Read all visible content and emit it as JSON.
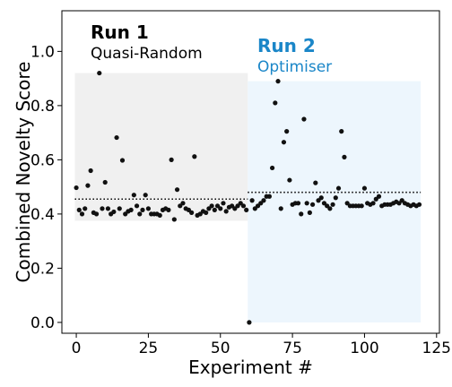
{
  "chart_data": {
    "type": "scatter",
    "xlabel": "Experiment #",
    "ylabel": "Combined Novelty Score",
    "xlim": [
      -5,
      126
    ],
    "ylim": [
      -0.04,
      1.15
    ],
    "xticks": [
      0,
      25,
      50,
      75,
      100,
      125
    ],
    "yticks": [
      0.0,
      0.2,
      0.4,
      0.6,
      0.8,
      1.0
    ],
    "grid": false,
    "colors": {
      "run1_region": "#f0f0f0",
      "run2_region": "#edf6fd",
      "run2_text": "#1a86c8",
      "points": "#111111",
      "mean_line": "#000000"
    },
    "annotations": [
      {
        "id": "run1",
        "title": "Run 1",
        "subtitle": "Quasi-Random",
        "color": "#000000"
      },
      {
        "id": "run2",
        "title": "Run 2",
        "subtitle": "Optimiser",
        "color": "#1a86c8"
      }
    ],
    "regions": [
      {
        "id": "run1",
        "x_start": -0.5,
        "x_end": 59.5,
        "y_start": 0.375,
        "y_end": 0.92,
        "color": "#f0f0f0"
      },
      {
        "id": "run2",
        "x_start": 59.5,
        "x_end": 119.5,
        "y_start": 0.0,
        "y_end": 0.89,
        "color": "#edf6fd"
      }
    ],
    "mean_lines": [
      {
        "id": "run1",
        "x_start": -0.5,
        "x_end": 59.5,
        "y": 0.455
      },
      {
        "id": "run2",
        "x_start": 59.5,
        "x_end": 119.5,
        "y": 0.48
      }
    ],
    "series": [
      {
        "x": [
          0,
          1,
          2,
          3,
          4,
          5,
          6,
          7,
          8,
          9,
          10,
          11,
          12,
          13,
          14,
          15,
          16,
          17,
          18,
          19,
          20,
          21,
          22,
          23,
          24,
          25,
          26,
          27,
          28,
          29,
          30,
          31,
          32,
          33,
          34,
          35,
          36,
          37,
          38,
          39,
          40,
          41,
          42,
          43,
          44,
          45,
          46,
          47,
          48,
          49,
          50,
          51,
          52,
          53,
          54,
          55,
          56,
          57,
          58,
          59
        ],
        "y": [
          0.497,
          0.415,
          0.4,
          0.42,
          0.505,
          0.56,
          0.405,
          0.4,
          0.92,
          0.42,
          0.517,
          0.42,
          0.4,
          0.408,
          0.682,
          0.42,
          0.598,
          0.4,
          0.41,
          0.415,
          0.47,
          0.43,
          0.4,
          0.415,
          0.47,
          0.42,
          0.4,
          0.4,
          0.4,
          0.395,
          0.415,
          0.42,
          0.415,
          0.6,
          0.38,
          0.49,
          0.43,
          0.44,
          0.42,
          0.415,
          0.405,
          0.612,
          0.395,
          0.4,
          0.41,
          0.405,
          0.42,
          0.43,
          0.415,
          0.43,
          0.42,
          0.44,
          0.41,
          0.425,
          0.43,
          0.42,
          0.43,
          0.44,
          0.43,
          0.415
        ]
      },
      {
        "x": [
          60,
          61,
          62,
          63,
          64,
          65,
          66,
          67,
          68,
          69,
          70,
          71,
          72,
          73,
          74,
          75,
          76,
          77,
          78,
          79,
          80,
          81,
          82,
          83,
          84,
          85,
          86,
          87,
          88,
          89,
          90,
          91,
          92,
          93,
          94,
          95,
          96,
          97,
          98,
          99,
          100,
          101,
          102,
          103,
          104,
          105,
          106,
          107,
          108,
          109,
          110,
          111,
          112,
          113,
          114,
          115,
          116,
          117,
          118,
          119
        ],
        "y": [
          0.0,
          0.45,
          0.42,
          0.43,
          0.44,
          0.45,
          0.465,
          0.465,
          0.57,
          0.81,
          0.89,
          0.42,
          0.665,
          0.705,
          0.525,
          0.435,
          0.44,
          0.44,
          0.4,
          0.75,
          0.44,
          0.405,
          0.435,
          0.515,
          0.45,
          0.46,
          0.44,
          0.43,
          0.42,
          0.435,
          0.46,
          0.495,
          0.705,
          0.61,
          0.44,
          0.43,
          0.43,
          0.43,
          0.43,
          0.43,
          0.495,
          0.44,
          0.435,
          0.44,
          0.455,
          0.465,
          0.43,
          0.435,
          0.435,
          0.435,
          0.44,
          0.445,
          0.44,
          0.45,
          0.44,
          0.435,
          0.43,
          0.435,
          0.43,
          0.435
        ]
      }
    ]
  }
}
